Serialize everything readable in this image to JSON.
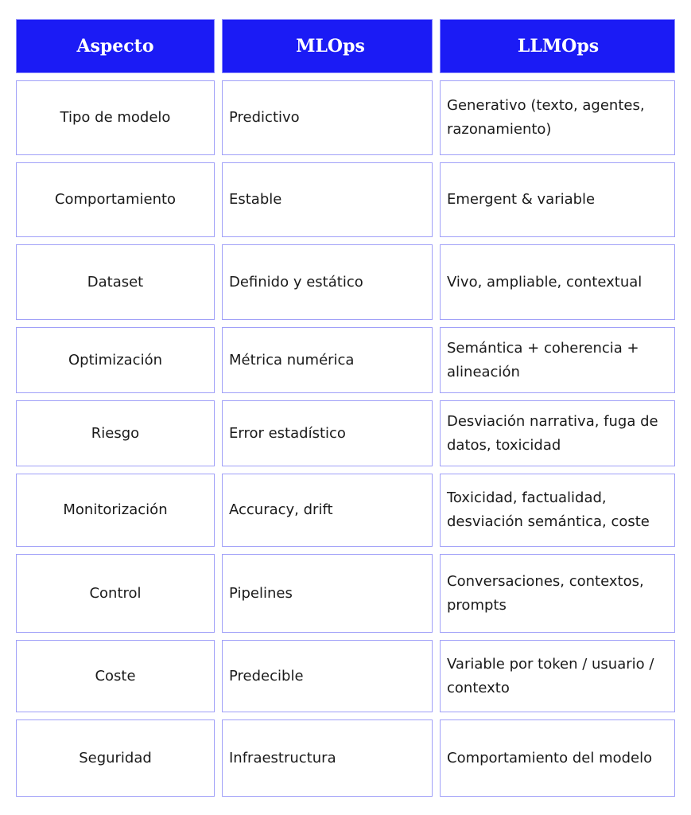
{
  "table": {
    "headers": [
      "Aspecto",
      "MLOps",
      "LLMOps"
    ],
    "rows": [
      [
        "Tipo de modelo",
        "Predictivo",
        "Generativo (texto, agentes, razonamiento)"
      ],
      [
        "Comportamiento",
        "Estable",
        "Emergent & variable"
      ],
      [
        "Dataset",
        "Definido y estático",
        "Vivo, ampliable, contextual"
      ],
      [
        "Optimización",
        "Métrica numérica",
        "Semántica + coherencia + alineación"
      ],
      [
        "Riesgo",
        "Error estadístico",
        "Desviación narrativa, fuga de datos, toxicidad"
      ],
      [
        "Monitorización",
        "Accuracy, drift",
        "Toxicidad, factualidad, desviación semántica, coste"
      ],
      [
        "Control",
        "Pipelines",
        "Conversaciones, contextos, prompts"
      ],
      [
        "Coste",
        "Predecible",
        "Variable por token / usuario / contexto"
      ],
      [
        "Seguridad",
        "Infraestructura",
        "Comportamiento del modelo"
      ]
    ]
  },
  "colors": {
    "header_bg": "#1b1bf5",
    "border": "#a0a0f8"
  }
}
